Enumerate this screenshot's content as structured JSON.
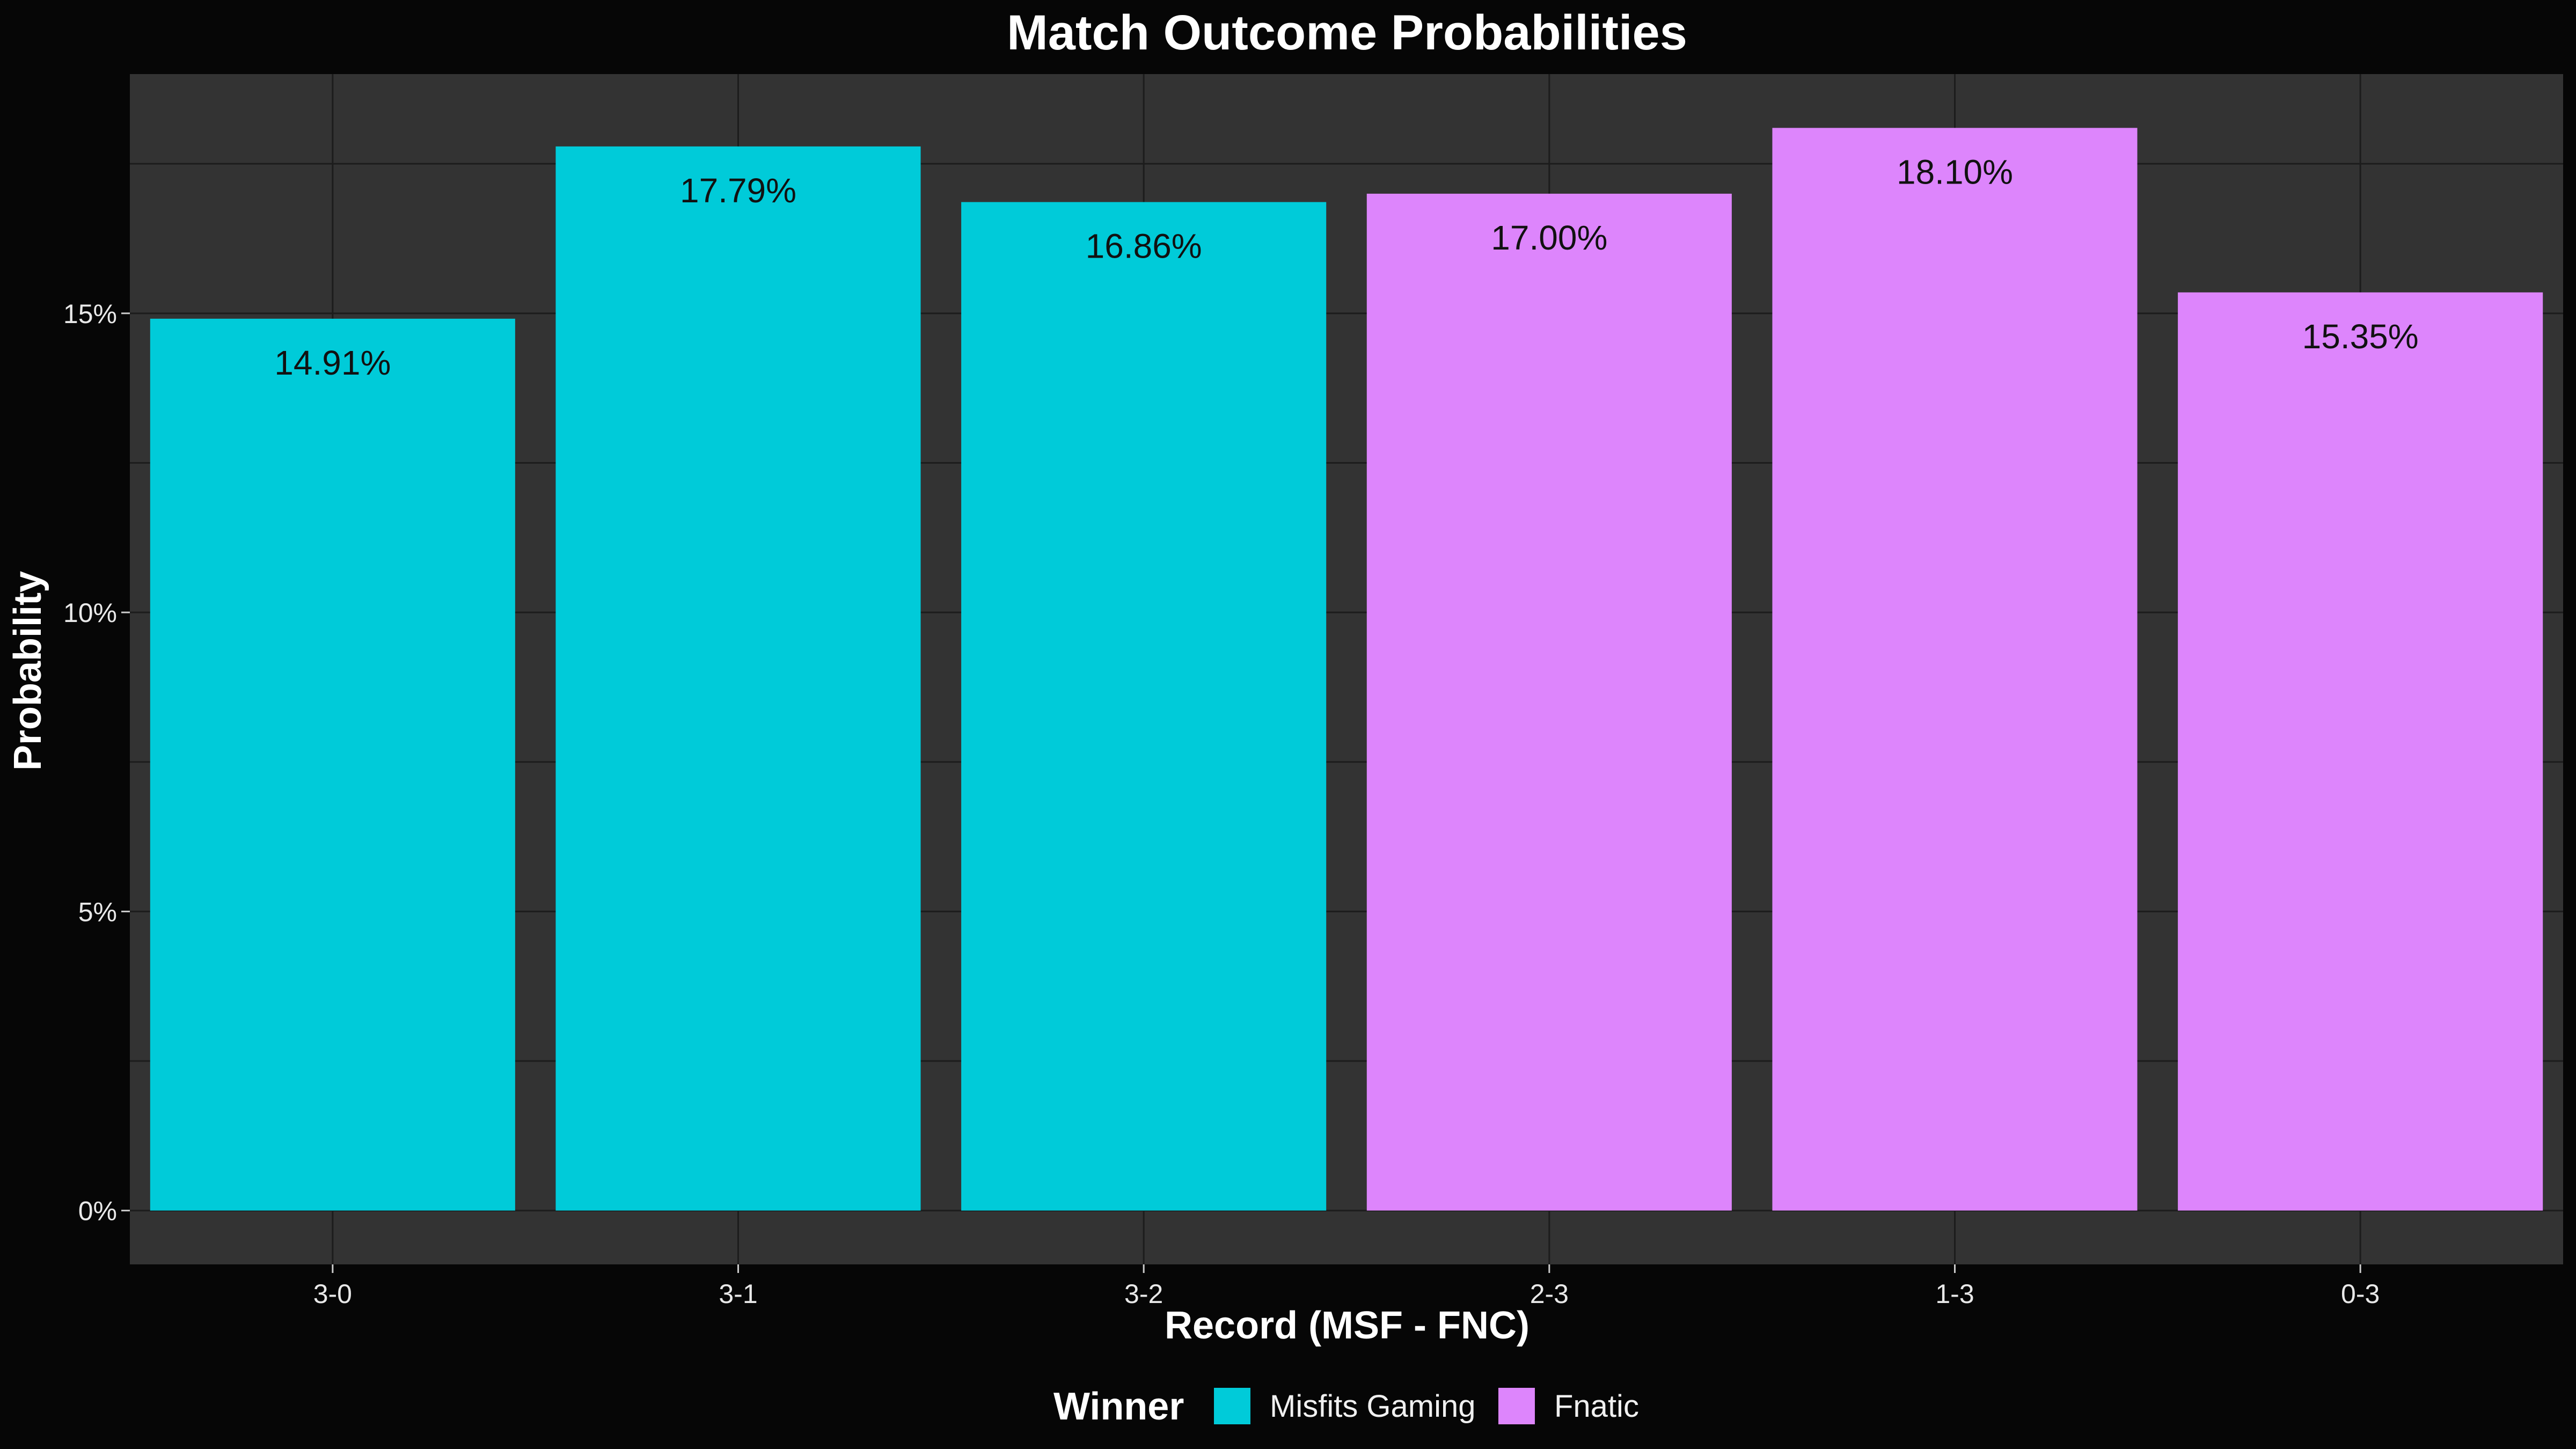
{
  "chart_data": {
    "type": "bar",
    "title": "Match Outcome Probabilities",
    "xlabel": "Record (MSF - FNC)",
    "ylabel": "Probability",
    "categories": [
      "3-0",
      "3-1",
      "3-2",
      "2-3",
      "1-3",
      "0-3"
    ],
    "values": [
      14.91,
      17.79,
      16.86,
      17.0,
      18.1,
      15.35
    ],
    "data_labels": [
      "14.91%",
      "17.79%",
      "16.86%",
      "17.00%",
      "18.10%",
      "15.35%"
    ],
    "winner": [
      "Misfits Gaming",
      "Misfits Gaming",
      "Misfits Gaming",
      "Fnatic",
      "Fnatic",
      "Fnatic"
    ],
    "yticks": [
      0,
      5,
      10,
      15
    ],
    "ytick_labels": [
      "0%",
      "5%",
      "10%",
      "15%"
    ],
    "ylim": [
      -0.9,
      19.0
    ],
    "grid": true,
    "legend": {
      "title": "Winner",
      "position": "bottom",
      "entries": [
        {
          "name": "Misfits Gaming",
          "color": "#00CBD9"
        },
        {
          "name": "Fnatic",
          "color": "#DD85FC"
        }
      ]
    },
    "colors": {
      "page_background": "#060606",
      "panel_background": "#333333",
      "grid": "#1c1c1c"
    }
  }
}
